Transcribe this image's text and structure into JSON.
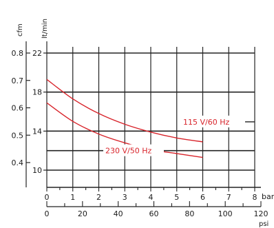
{
  "chart_data": {
    "type": "line",
    "grid": true,
    "axes": {
      "cfm": {
        "unit_label": "cfm",
        "ticks": [
          "0.8",
          "0.7",
          "0.6",
          "0.5",
          "0.4"
        ],
        "range": [
          0.3,
          0.85
        ]
      },
      "lt_min": {
        "unit_label": "lt/min",
        "ticks": [
          "22",
          "18",
          "14",
          "10"
        ],
        "range": [
          8.0,
          24.0
        ]
      },
      "bar": {
        "unit_label": "bar",
        "ticks": [
          "0",
          "1",
          "2",
          "3",
          "4",
          "5",
          "6",
          "7",
          "8"
        ],
        "range": [
          0,
          8
        ]
      },
      "psi": {
        "unit_label": "psi",
        "ticks": [
          "0",
          "20",
          "40",
          "60",
          "80",
          "100",
          "120"
        ],
        "range": [
          0,
          120
        ]
      }
    },
    "series": [
      {
        "name": "115 V/60 Hz",
        "color": "#d8232a",
        "x_bar": [
          0,
          1,
          2,
          3,
          4,
          5,
          6
        ],
        "y_lt_min": [
          19.3,
          17.3,
          15.8,
          14.7,
          13.9,
          13.3,
          12.9
        ]
      },
      {
        "name": "230 V/50 Hz",
        "color": "#d8232a",
        "x_bar": [
          0,
          1,
          2,
          3,
          4,
          5,
          6
        ],
        "y_lt_min": [
          16.9,
          15.0,
          13.7,
          12.8,
          12.1,
          11.7,
          11.3
        ]
      }
    ]
  }
}
